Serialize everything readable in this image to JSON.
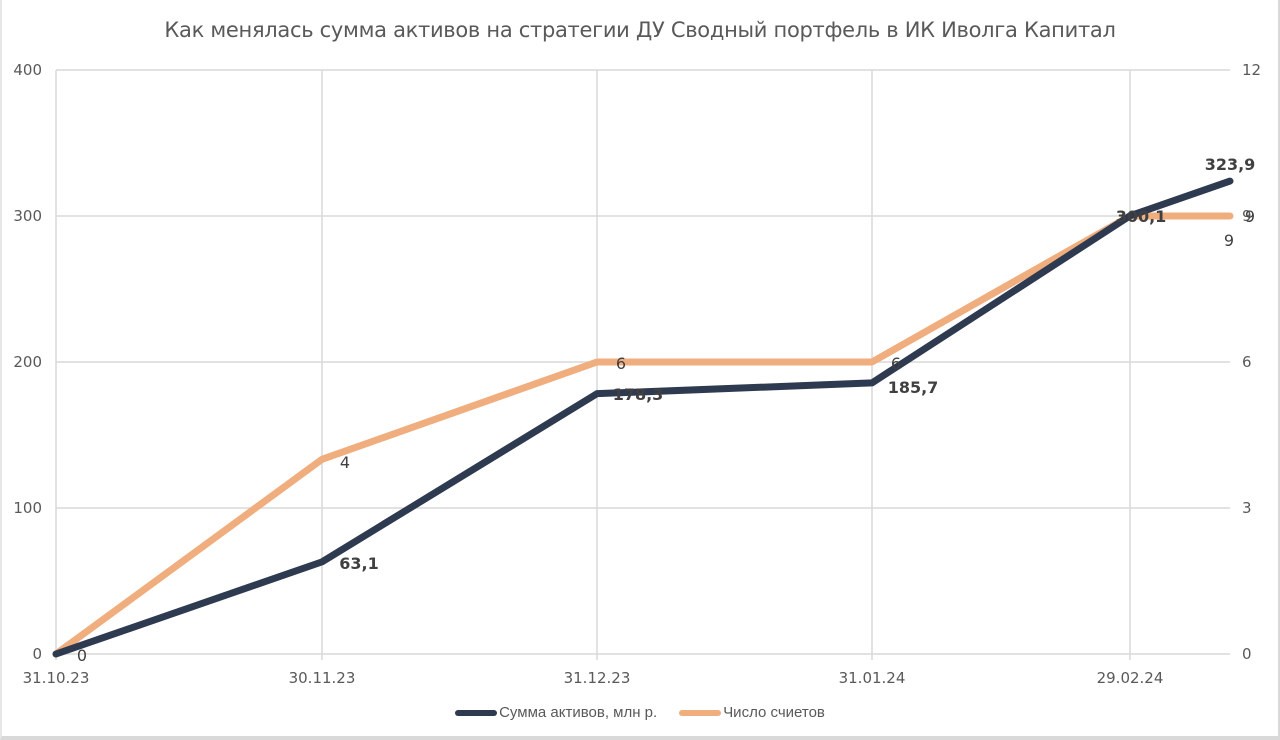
{
  "title": "Как менялась сумма активов на стратегии ДУ Сводный портфель в ИК Иволга Капитал",
  "colors": {
    "assets": "#2e3a4f",
    "accounts": "#f0ad7e",
    "grid": "#d9d9d9",
    "text": "#595959"
  },
  "legend": {
    "assets_label": "Сумма активов, млн р.",
    "accounts_label": "Число счиетов"
  },
  "chart_data": {
    "type": "line",
    "title": "Как менялась сумма активов на стратегии ДУ Сводный портфель в ИК Иволга Капитал",
    "categories": [
      "31.10.23",
      "30.11.23",
      "31.12.23",
      "31.01.24",
      "29.02.24",
      ""
    ],
    "series": [
      {
        "name": "Сумма активов, млн р.",
        "axis": "left",
        "values": [
          0,
          63.1,
          178.3,
          185.7,
          300.1,
          323.9
        ],
        "labels": [
          "0",
          "63,1",
          "178,3",
          "185,7",
          "300,1",
          "323,9"
        ]
      },
      {
        "name": "Число счиетов",
        "axis": "right",
        "values": [
          0,
          4,
          6,
          6,
          9,
          9
        ],
        "labels": [
          "0",
          "4",
          "6",
          "6",
          "9",
          "9"
        ]
      }
    ],
    "y_left": {
      "ticks": [
        "0",
        "100",
        "200",
        "300",
        "400"
      ],
      "ylim": [
        0,
        400
      ]
    },
    "y_right": {
      "ticks": [
        "0",
        "3",
        "6",
        "9",
        "12"
      ],
      "ylim": [
        0,
        12
      ]
    },
    "grid": true,
    "legend_position": "bottom"
  }
}
